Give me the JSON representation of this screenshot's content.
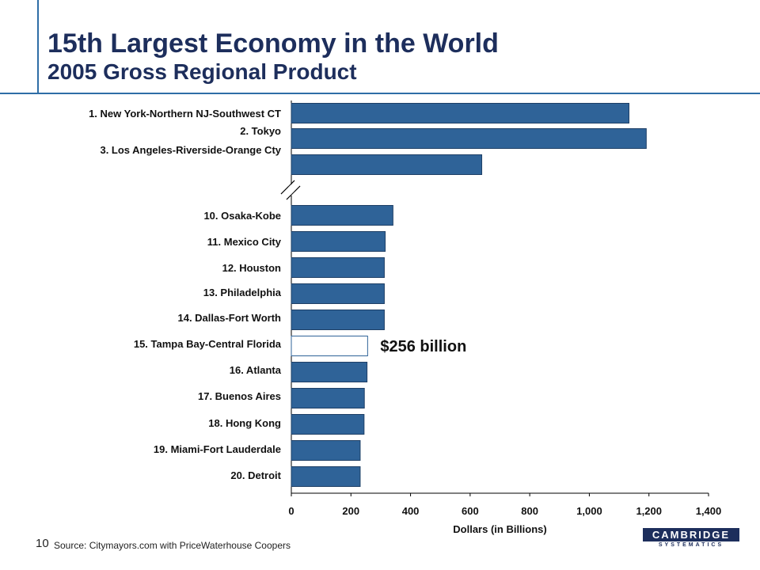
{
  "slide": {
    "title": "15th Largest Economy in the World",
    "subtitle": "2005 Gross Regional Product",
    "page_number": "10",
    "source": "Source:  Citymayors.com with PriceWaterhouse Coopers",
    "logo_top": "CAMBRIDGE",
    "logo_bottom": "SYSTEMATICS"
  },
  "chart_data": {
    "type": "bar",
    "orientation": "horizontal",
    "title": "",
    "xlabel": "Dollars (in Billions)",
    "ylabel": "",
    "xlim": [
      0,
      1400
    ],
    "xticks": [
      "0",
      "200",
      "400",
      "600",
      "800",
      "1,000",
      "1,200",
      "1,400"
    ],
    "grid": false,
    "axis_break": "between 3 and 10",
    "categories": [
      "1.  New York-Northern NJ-Southwest CT",
      "2.  Tokyo",
      "3.  Los Angeles-Riverside-Orange Cty",
      "10.  Osaka-Kobe",
      "11.  Mexico City",
      "12.  Houston",
      "13.  Philadelphia",
      "14.  Dallas-Fort Worth",
      "15.  Tampa Bay-Central Florida",
      "16.  Atlanta",
      "17.  Buenos Aires",
      "18.  Hong Kong",
      "19.  Miami-Fort Lauderdale",
      "20.  Detroit"
    ],
    "values": [
      1133,
      1191,
      639,
      341,
      315,
      312,
      312,
      312,
      256,
      254,
      245,
      244,
      231,
      231
    ],
    "highlight_index": 8,
    "annotation": "$256 billion",
    "colors": {
      "bar": "#2f6398",
      "highlight_fill": "#ffffff",
      "highlight_stroke": "#2f6398",
      "axis": "#000000",
      "text": "#111111"
    }
  }
}
